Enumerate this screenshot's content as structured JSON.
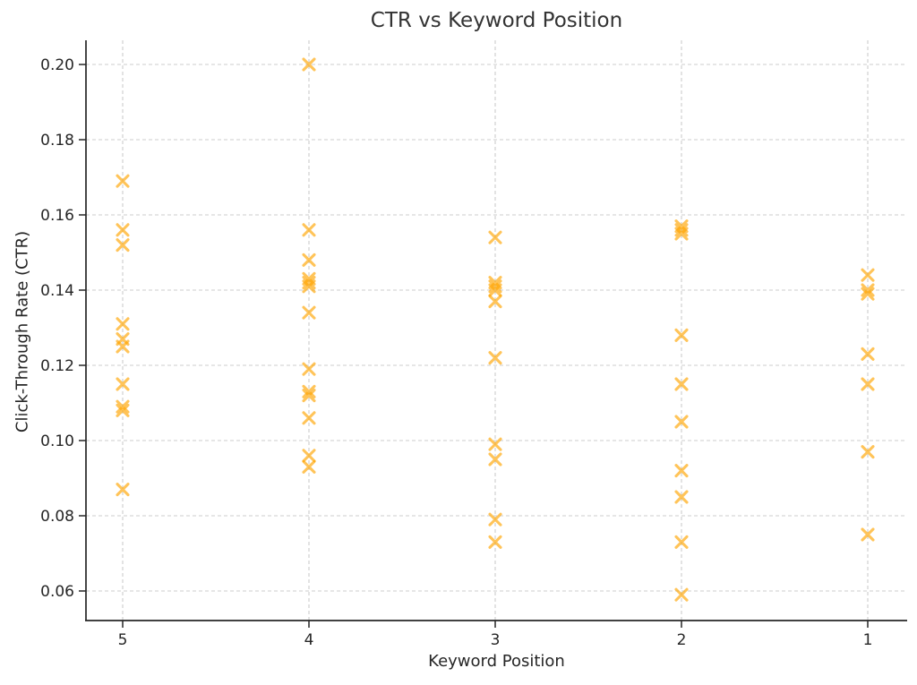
{
  "chart_data": {
    "type": "scatter",
    "title": "CTR vs Keyword Position",
    "xlabel": "Keyword Position",
    "ylabel": "Click-Through Rate (CTR)",
    "x_ticks": [
      5,
      4,
      3,
      2,
      1
    ],
    "x_axis_reversed": true,
    "y_ticks": [
      0.06,
      0.08,
      0.1,
      0.12,
      0.14,
      0.16,
      0.18,
      0.2
    ],
    "ylim": [
      0.052,
      0.206
    ],
    "grid": true,
    "grid_style": "dashed",
    "grid_color": "#cccccc",
    "spine_color": "#262626",
    "marker": "x",
    "marker_color": "#FFA500",
    "marker_opacity": 0.65,
    "points": [
      {
        "pos": 5,
        "ctr": 0.169
      },
      {
        "pos": 5,
        "ctr": 0.156
      },
      {
        "pos": 5,
        "ctr": 0.152
      },
      {
        "pos": 5,
        "ctr": 0.131
      },
      {
        "pos": 5,
        "ctr": 0.127
      },
      {
        "pos": 5,
        "ctr": 0.125
      },
      {
        "pos": 5,
        "ctr": 0.115
      },
      {
        "pos": 5,
        "ctr": 0.109
      },
      {
        "pos": 5,
        "ctr": 0.108
      },
      {
        "pos": 5,
        "ctr": 0.087
      },
      {
        "pos": 4,
        "ctr": 0.2
      },
      {
        "pos": 4,
        "ctr": 0.156
      },
      {
        "pos": 4,
        "ctr": 0.148
      },
      {
        "pos": 4,
        "ctr": 0.143
      },
      {
        "pos": 4,
        "ctr": 0.142
      },
      {
        "pos": 4,
        "ctr": 0.141
      },
      {
        "pos": 4,
        "ctr": 0.134
      },
      {
        "pos": 4,
        "ctr": 0.119
      },
      {
        "pos": 4,
        "ctr": 0.113
      },
      {
        "pos": 4,
        "ctr": 0.112
      },
      {
        "pos": 4,
        "ctr": 0.106
      },
      {
        "pos": 4,
        "ctr": 0.096
      },
      {
        "pos": 4,
        "ctr": 0.093
      },
      {
        "pos": 3,
        "ctr": 0.154
      },
      {
        "pos": 3,
        "ctr": 0.142
      },
      {
        "pos": 3,
        "ctr": 0.141
      },
      {
        "pos": 3,
        "ctr": 0.14
      },
      {
        "pos": 3,
        "ctr": 0.137
      },
      {
        "pos": 3,
        "ctr": 0.122
      },
      {
        "pos": 3,
        "ctr": 0.099
      },
      {
        "pos": 3,
        "ctr": 0.095
      },
      {
        "pos": 3,
        "ctr": 0.079
      },
      {
        "pos": 3,
        "ctr": 0.073
      },
      {
        "pos": 2,
        "ctr": 0.157
      },
      {
        "pos": 2,
        "ctr": 0.156
      },
      {
        "pos": 2,
        "ctr": 0.155
      },
      {
        "pos": 2,
        "ctr": 0.128
      },
      {
        "pos": 2,
        "ctr": 0.115
      },
      {
        "pos": 2,
        "ctr": 0.105
      },
      {
        "pos": 2,
        "ctr": 0.092
      },
      {
        "pos": 2,
        "ctr": 0.085
      },
      {
        "pos": 2,
        "ctr": 0.073
      },
      {
        "pos": 2,
        "ctr": 0.059
      },
      {
        "pos": 1,
        "ctr": 0.144
      },
      {
        "pos": 1,
        "ctr": 0.14
      },
      {
        "pos": 1,
        "ctr": 0.139
      },
      {
        "pos": 1,
        "ctr": 0.123
      },
      {
        "pos": 1,
        "ctr": 0.115
      },
      {
        "pos": 1,
        "ctr": 0.097
      },
      {
        "pos": 1,
        "ctr": 0.075
      }
    ]
  }
}
